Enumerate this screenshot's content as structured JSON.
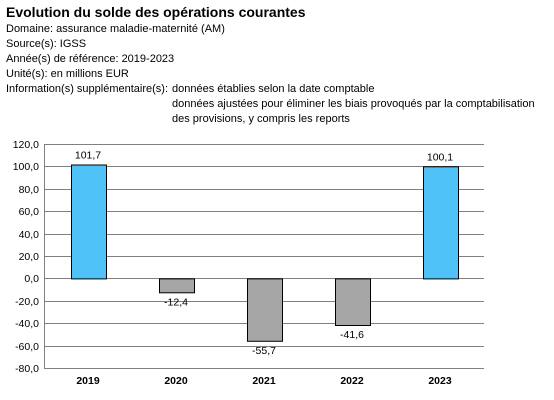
{
  "header": {
    "title": "Evolution du solde des opérations courantes",
    "domain_line": "Domaine: assurance maladie-maternité (AM)",
    "source_line": "Source(s): IGSS",
    "years_line": "Année(s) de référence: 2019-2023",
    "unit_line": "Unité(s): en millions EUR",
    "info_label": "Information(s) supplémentaire(s):",
    "info_1": "données établies selon la date comptable",
    "info_2": "données ajustées pour éliminer les biais provoqués par la comptabilisation des provisions, y compris les reports"
  },
  "colors": {
    "positive": "#4fc3f7",
    "negative": "#a6a6a6",
    "grid": "#808080"
  },
  "chart_data": {
    "type": "bar",
    "categories": [
      "2019",
      "2020",
      "2021",
      "2022",
      "2023"
    ],
    "values": [
      101.7,
      -12.4,
      -55.7,
      -41.6,
      100.1
    ],
    "value_labels": [
      "101,7",
      "-12,4",
      "-55,7",
      "-41,6",
      "100,1"
    ],
    "ylim": [
      -80,
      120
    ],
    "yticks": [
      120,
      100,
      80,
      60,
      40,
      20,
      0,
      -20,
      -40,
      -60,
      -80
    ],
    "ytick_labels": [
      "120,0",
      "100,0",
      "80,0",
      "60,0",
      "40,0",
      "20,0",
      "0,0",
      "-20,0",
      "-40,0",
      "-60,0",
      "-80,0"
    ],
    "grid": true,
    "legend": "none"
  }
}
